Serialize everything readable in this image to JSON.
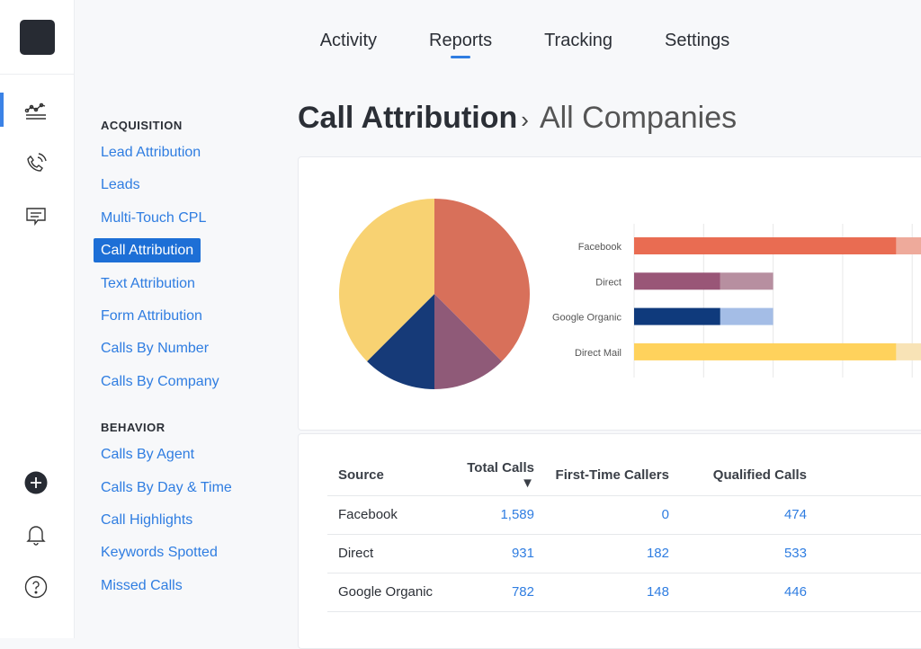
{
  "topnav": {
    "items": [
      "Activity",
      "Reports",
      "Tracking",
      "Settings"
    ],
    "active": "Reports"
  },
  "sidebar": {
    "sections": [
      {
        "heading": "ACQUISITION",
        "items": [
          "Lead Attribution",
          "Leads",
          "Multi-Touch CPL",
          "Call Attribution",
          "Text Attribution",
          "Form Attribution",
          "Calls By Number",
          "Calls By Company"
        ]
      },
      {
        "heading": "BEHAVIOR",
        "items": [
          "Calls By Agent",
          "Calls By Day & Time",
          "Call Highlights",
          "Keywords Spotted",
          "Missed Calls"
        ]
      }
    ],
    "selected": "Call Attribution"
  },
  "page": {
    "title": "Call Attribution",
    "separator": "›",
    "company": "All Companies"
  },
  "chart_data": [
    {
      "type": "pie",
      "slices": [
        {
          "label": "Facebook",
          "value": 37.5,
          "color": "#d8705a"
        },
        {
          "label": "Direct",
          "value": 12.5,
          "color": "#8f5a78"
        },
        {
          "label": "Google Organic",
          "value": 12.5,
          "color": "#163a78"
        },
        {
          "label": "Direct Mail",
          "value": 37.5,
          "color": "#f8d272"
        }
      ]
    },
    {
      "type": "bar",
      "orientation": "horizontal",
      "stacked": true,
      "categories": [
        "Facebook",
        "Direct",
        "Google Organic",
        "Direct Mail"
      ],
      "series": [
        {
          "name": "primary",
          "values": [
            3.77,
            1.24,
            1.24,
            3.77
          ],
          "colors": [
            "#e96c52",
            "#995677",
            "#0f3a7c",
            "#ffd25c"
          ]
        },
        {
          "name": "secondary",
          "values": [
            0.6,
            0.76,
            0.76,
            0.6
          ],
          "colors": [
            "#eeaa9b",
            "#b78fa0",
            "#a4bde6",
            "#f8e3b6"
          ]
        }
      ],
      "grid": true,
      "xlim": [
        0,
        4.2
      ]
    }
  ],
  "table": {
    "headers": [
      "Source",
      "Total Calls ▼",
      "First-Time Callers",
      "Qualified Calls"
    ],
    "rows": [
      [
        "Facebook",
        "1,589",
        "0",
        "474"
      ],
      [
        "Direct",
        "931",
        "182",
        "533"
      ],
      [
        "Google Organic",
        "782",
        "148",
        "446"
      ]
    ]
  }
}
